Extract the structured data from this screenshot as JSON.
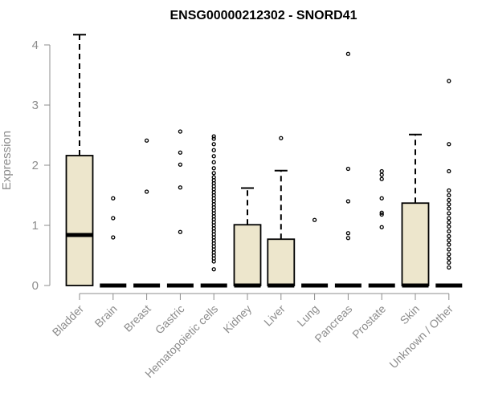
{
  "chart_data": {
    "type": "boxplot",
    "title": "ENSG00000212302 - SNORD41",
    "xlabel": "",
    "ylabel": "Expression",
    "ylim": [
      0,
      4.2
    ],
    "yticks": [
      0,
      1,
      2,
      3,
      4
    ],
    "grid": false,
    "box_fill": "#ede6cc",
    "categories": [
      "Bladder",
      "Brain",
      "Breast",
      "Gastric",
      "Hematopoietic cells",
      "Kidney",
      "Liver",
      "Lung",
      "Pancreas",
      "Prostate",
      "Skin",
      "Unknown / Other"
    ],
    "boxes": [
      {
        "q1": 0,
        "median": 0.84,
        "q3": 2.16,
        "whisker_low": 0,
        "whisker_high": 4.17,
        "outliers": []
      },
      {
        "q1": 0,
        "median": 0,
        "q3": 0,
        "whisker_low": 0,
        "whisker_high": 0,
        "outliers": [
          0.8,
          1.12,
          1.45
        ]
      },
      {
        "q1": 0,
        "median": 0,
        "q3": 0,
        "whisker_low": 0,
        "whisker_high": 0,
        "outliers": [
          1.56,
          2.41
        ]
      },
      {
        "q1": 0,
        "median": 0,
        "q3": 0,
        "whisker_low": 0,
        "whisker_high": 0,
        "outliers": [
          0.89,
          1.63,
          2.01,
          2.21,
          2.56
        ]
      },
      {
        "q1": 0,
        "median": 0,
        "q3": 0,
        "whisker_low": 0,
        "whisker_high": 0,
        "outliers": [
          0.27,
          0.4,
          0.45,
          0.5,
          0.55,
          0.6,
          0.65,
          0.7,
          0.75,
          0.8,
          0.85,
          0.9,
          0.95,
          1.0,
          1.05,
          1.1,
          1.15,
          1.2,
          1.25,
          1.3,
          1.35,
          1.4,
          1.45,
          1.5,
          1.55,
          1.6,
          1.65,
          1.7,
          1.75,
          1.8,
          1.87,
          1.95,
          2.05,
          2.15,
          2.25,
          2.35,
          2.44,
          2.48
        ]
      },
      {
        "q1": 0,
        "median": 0,
        "q3": 1.01,
        "whisker_low": 0,
        "whisker_high": 1.62,
        "outliers": []
      },
      {
        "q1": 0,
        "median": 0,
        "q3": 0.77,
        "whisker_low": 0,
        "whisker_high": 1.91,
        "outliers": [
          2.45
        ]
      },
      {
        "q1": 0,
        "median": 0,
        "q3": 0,
        "whisker_low": 0,
        "whisker_high": 0,
        "outliers": [
          1.09
        ]
      },
      {
        "q1": 0,
        "median": 0,
        "q3": 0,
        "whisker_low": 0,
        "whisker_high": 0,
        "outliers": [
          0.79,
          0.87,
          1.4,
          1.94,
          3.85
        ]
      },
      {
        "q1": 0,
        "median": 0,
        "q3": 0,
        "whisker_low": 0,
        "whisker_high": 0,
        "outliers": [
          0.97,
          1.18,
          1.21,
          1.45,
          1.77,
          1.84,
          1.9
        ]
      },
      {
        "q1": 0,
        "median": 0,
        "q3": 1.37,
        "whisker_low": 0,
        "whisker_high": 2.51,
        "outliers": []
      },
      {
        "q1": 0,
        "median": 0,
        "q3": 0,
        "whisker_low": 0,
        "whisker_high": 0,
        "outliers": [
          0.3,
          0.38,
          0.45,
          0.52,
          0.6,
          0.68,
          0.75,
          0.82,
          0.9,
          0.98,
          1.05,
          1.12,
          1.2,
          1.28,
          1.35,
          1.42,
          1.5,
          1.58,
          1.9,
          2.35,
          3.4
        ]
      }
    ]
  }
}
